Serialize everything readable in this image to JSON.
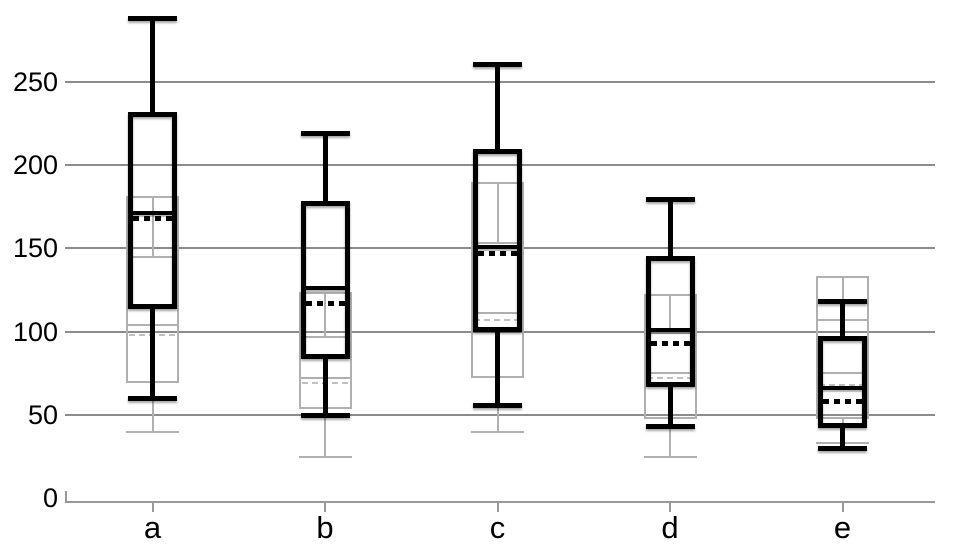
{
  "chart_data": {
    "type": "boxplot",
    "title": "",
    "xlabel": "",
    "ylabel": "",
    "categories": [
      "a",
      "b",
      "c",
      "d",
      "e"
    ],
    "y_ticks": [
      0,
      50,
      100,
      150,
      200,
      250
    ],
    "ylim": [
      0,
      300
    ],
    "grid": "horizontal",
    "legend": "none",
    "series": [
      {
        "name": "gray-series",
        "role": "background",
        "color": "#b0b0b0",
        "line_weight": "thin",
        "mean_style": "dashed",
        "boxes": [
          {
            "category": "a",
            "whisker_high": 181,
            "q3": 145,
            "median": 104,
            "mean": 98,
            "q1": 70,
            "whisker_low": 40
          },
          {
            "category": "b",
            "whisker_high": 123,
            "q3": 97,
            "median": 72,
            "mean": 69,
            "q1": 54,
            "whisker_low": 25
          },
          {
            "category": "c",
            "whisker_high": 189,
            "q3": 153,
            "median": 111,
            "mean": 107,
            "q1": 73,
            "whisker_low": 40
          },
          {
            "category": "d",
            "whisker_high": 122,
            "q3": 99,
            "median": 75,
            "mean": 72,
            "q1": 48,
            "whisker_low": 25
          },
          {
            "category": "e",
            "whisker_high": 133,
            "q3": 107,
            "median": 75,
            "mean": 68,
            "q1": 48,
            "whisker_low": 33
          }
        ]
      },
      {
        "name": "black-series",
        "role": "foreground",
        "color": "#000000",
        "line_weight": "bold",
        "mean_style": "dotted",
        "boxes": [
          {
            "category": "a",
            "whisker_high": 288,
            "q3": 230,
            "median": 171,
            "mean": 168,
            "q1": 115,
            "whisker_low": 60
          },
          {
            "category": "b",
            "whisker_high": 219,
            "q3": 177,
            "median": 126,
            "mean": 117,
            "q1": 85,
            "whisker_low": 50
          },
          {
            "category": "c",
            "whisker_high": 260,
            "q3": 208,
            "median": 151,
            "mean": 147,
            "q1": 101,
            "whisker_low": 56
          },
          {
            "category": "d",
            "whisker_high": 179,
            "q3": 144,
            "median": 101,
            "mean": 93,
            "q1": 68,
            "whisker_low": 43
          },
          {
            "category": "e",
            "whisker_high": 118,
            "q3": 96,
            "median": 66,
            "mean": 58,
            "q1": 44,
            "whisker_low": 30
          }
        ]
      }
    ]
  },
  "colors": {
    "background": "#ffffff",
    "gridline": "#8c8c8c",
    "axis": "#999999",
    "tick_label": "#000000",
    "gray_series": "#b0b0b0",
    "gray_mean_dash": "#c0c0c0",
    "black_series": "#000000"
  }
}
